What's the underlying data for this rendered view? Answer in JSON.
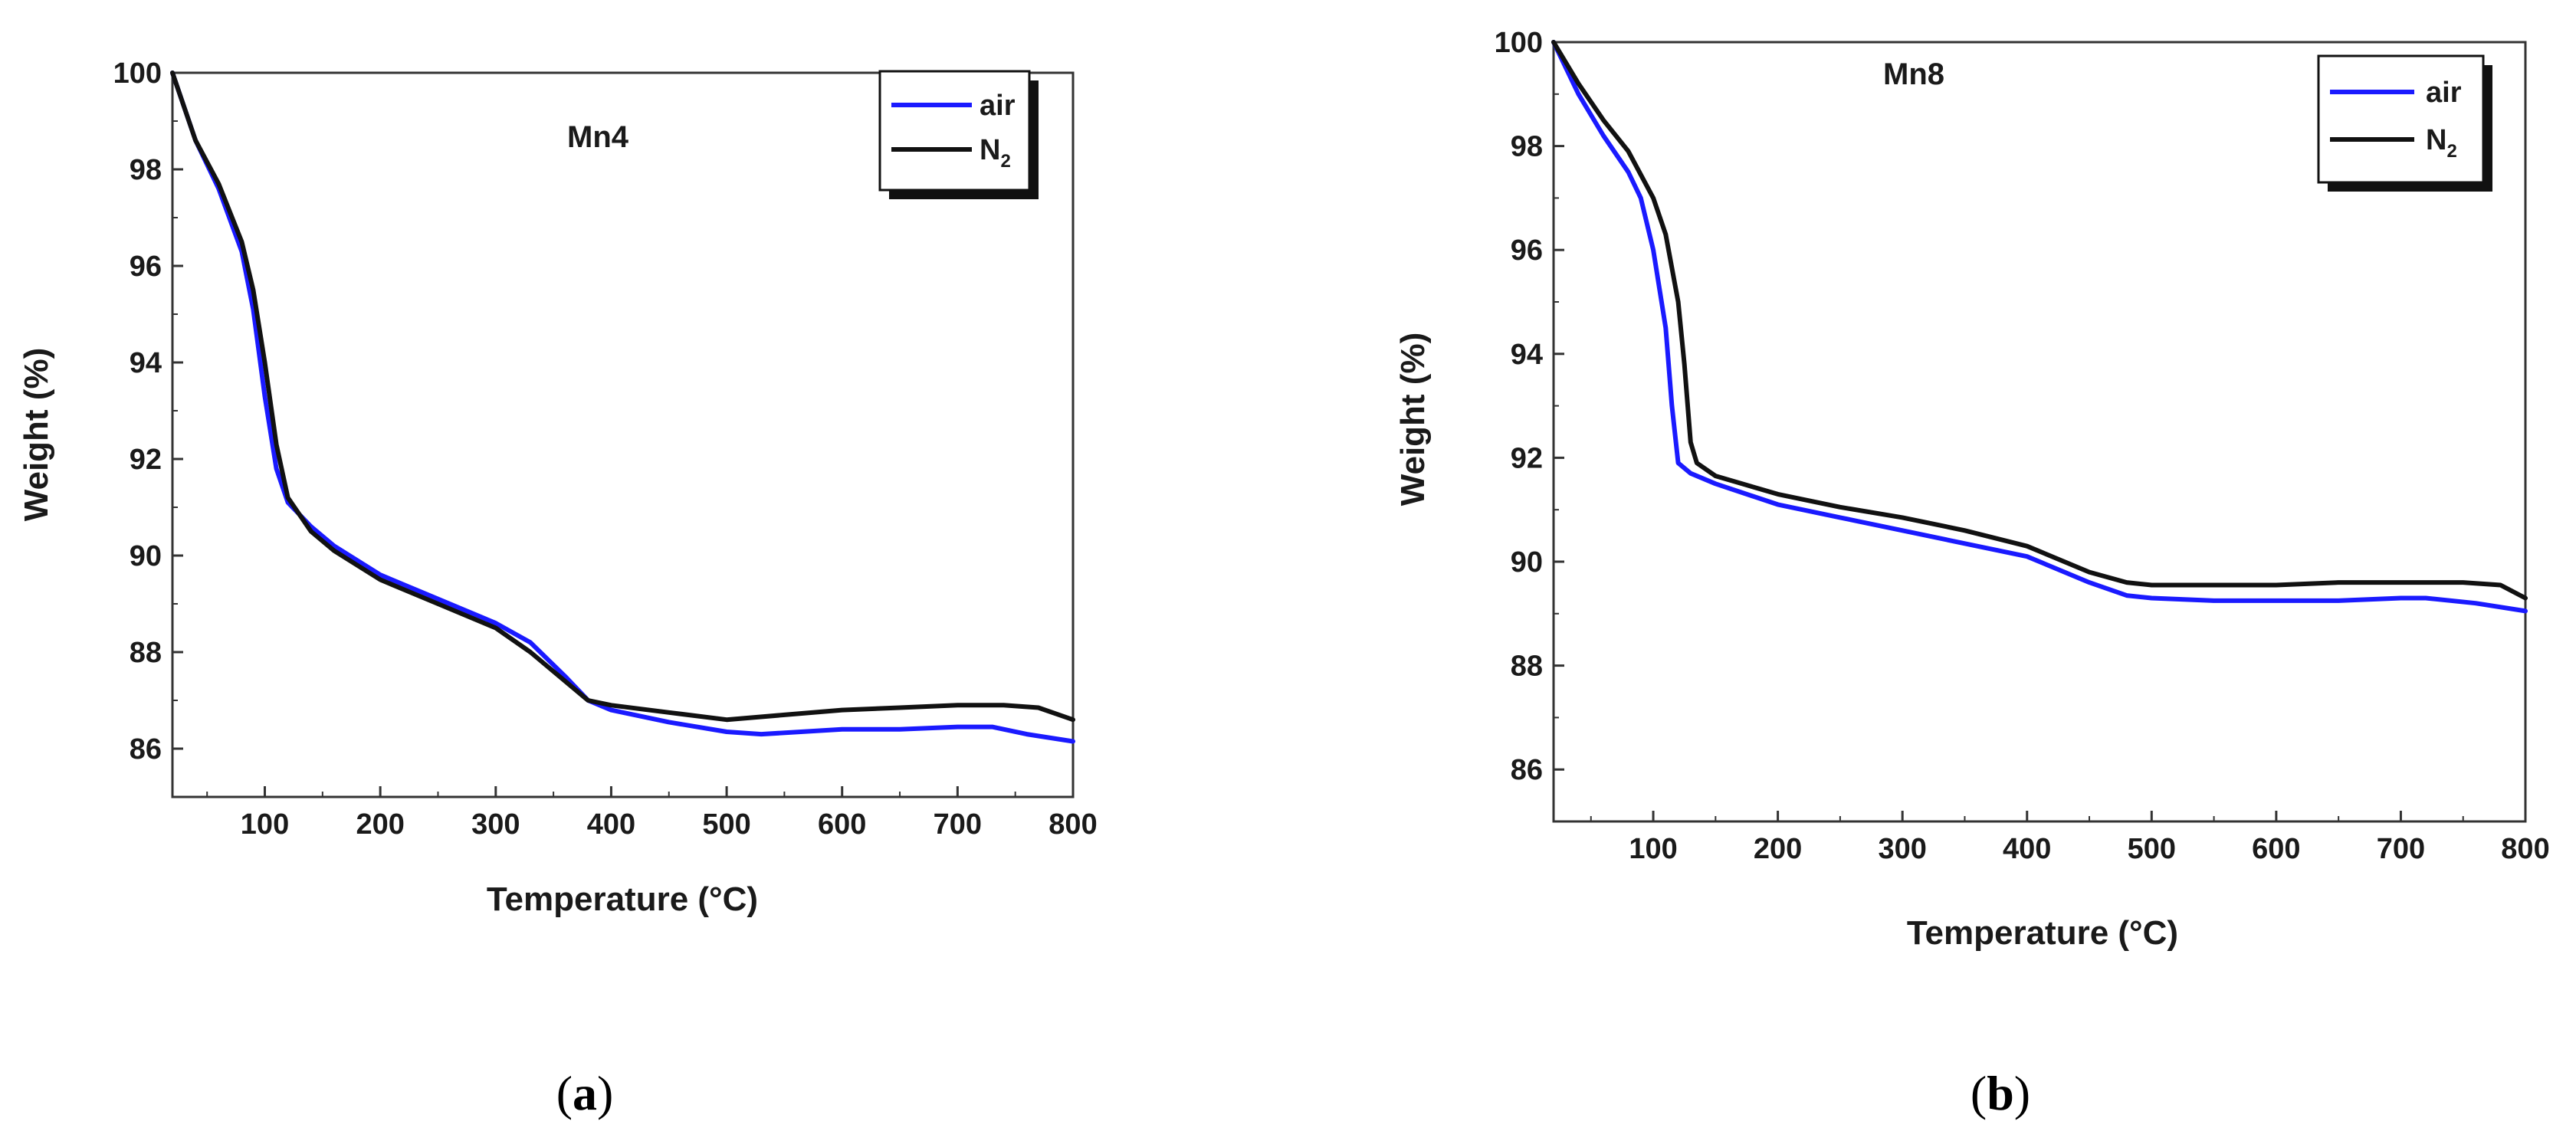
{
  "colors": {
    "air": "#1a1aff",
    "n2": "#111111"
  },
  "chart_data": [
    {
      "type": "line",
      "panel": "a",
      "title": "Mn4",
      "xlabel": "Temperature (°C)",
      "ylabel": "Weight (%)",
      "xlim": [
        20,
        800
      ],
      "ylim": [
        85,
        100
      ],
      "xticks": [
        "100",
        "200",
        "300",
        "400",
        "500",
        "600",
        "700",
        "800"
      ],
      "yticks": [
        "86",
        "88",
        "90",
        "92",
        "94",
        "96",
        "98",
        "100"
      ],
      "legend_position": "top-right",
      "series": [
        {
          "name": "air",
          "legend_main": "air",
          "legend_sub": "",
          "color": "#1a1aff",
          "x": [
            20,
            40,
            60,
            80,
            90,
            100,
            110,
            120,
            140,
            160,
            200,
            250,
            300,
            330,
            360,
            380,
            400,
            450,
            500,
            530,
            600,
            650,
            700,
            730,
            760,
            800
          ],
          "y": [
            100,
            98.6,
            97.6,
            96.3,
            95.1,
            93.3,
            91.8,
            91.1,
            90.6,
            90.2,
            89.6,
            89.1,
            88.6,
            88.2,
            87.5,
            87.0,
            86.8,
            86.55,
            86.35,
            86.3,
            86.4,
            86.4,
            86.45,
            86.45,
            86.3,
            86.15
          ]
        },
        {
          "name": "N2",
          "legend_main": "N",
          "legend_sub": "2",
          "color": "#111111",
          "x": [
            20,
            40,
            60,
            80,
            90,
            100,
            110,
            120,
            140,
            160,
            200,
            250,
            300,
            330,
            360,
            380,
            400,
            450,
            500,
            550,
            600,
            650,
            700,
            740,
            770,
            800
          ],
          "y": [
            100,
            98.6,
            97.7,
            96.5,
            95.5,
            94.0,
            92.3,
            91.2,
            90.5,
            90.1,
            89.5,
            89.0,
            88.5,
            88.0,
            87.4,
            87.0,
            86.9,
            86.75,
            86.6,
            86.7,
            86.8,
            86.85,
            86.9,
            86.9,
            86.85,
            86.6
          ]
        }
      ]
    },
    {
      "type": "line",
      "panel": "b",
      "title": "Mn8",
      "xlabel": "Temperature (°C)",
      "ylabel": "Weight (%)",
      "xlim": [
        20,
        800
      ],
      "ylim": [
        85,
        100
      ],
      "xticks": [
        "100",
        "200",
        "300",
        "400",
        "500",
        "600",
        "700",
        "800"
      ],
      "yticks": [
        "86",
        "88",
        "90",
        "92",
        "94",
        "96",
        "98",
        "100"
      ],
      "legend_position": "top-right",
      "series": [
        {
          "name": "air",
          "legend_main": "air",
          "legend_sub": "",
          "color": "#1a1aff",
          "x": [
            20,
            40,
            60,
            80,
            90,
            100,
            110,
            115,
            120,
            130,
            150,
            200,
            250,
            300,
            350,
            400,
            450,
            480,
            500,
            550,
            600,
            650,
            700,
            720,
            760,
            800
          ],
          "y": [
            100,
            99.0,
            98.2,
            97.5,
            97.0,
            96.0,
            94.5,
            93.0,
            91.9,
            91.7,
            91.5,
            91.1,
            90.85,
            90.6,
            90.35,
            90.1,
            89.6,
            89.35,
            89.3,
            89.25,
            89.25,
            89.25,
            89.3,
            89.3,
            89.2,
            89.05
          ]
        },
        {
          "name": "N2",
          "legend_main": "N",
          "legend_sub": "2",
          "color": "#111111",
          "x": [
            20,
            40,
            60,
            80,
            100,
            110,
            120,
            125,
            130,
            135,
            150,
            200,
            250,
            300,
            350,
            400,
            450,
            480,
            500,
            550,
            600,
            650,
            700,
            750,
            780,
            800
          ],
          "y": [
            100,
            99.2,
            98.5,
            97.9,
            97.0,
            96.3,
            95.0,
            93.8,
            92.3,
            91.9,
            91.65,
            91.3,
            91.05,
            90.85,
            90.6,
            90.3,
            89.8,
            89.6,
            89.55,
            89.55,
            89.55,
            89.6,
            89.6,
            89.6,
            89.55,
            89.3
          ]
        }
      ]
    }
  ],
  "captions": [
    "(a)",
    "(b)"
  ]
}
